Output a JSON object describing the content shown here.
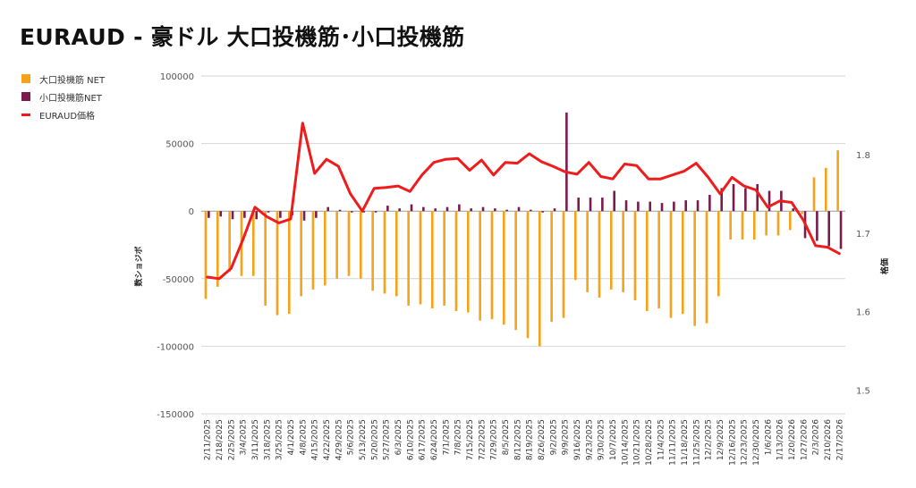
{
  "title": "EURAUD - 豪ドル 大口投機筋･小口投機筋",
  "colors": {
    "large": "#f5a31a",
    "small": "#7b1c4d",
    "price": "#ee1c1c",
    "grid": "#d6d6d6",
    "axis": "#555555"
  },
  "legend": [
    {
      "label": "大口投機筋  NET",
      "color": "#f5a31a",
      "kind": "box"
    },
    {
      "label": "小口投機筋NET",
      "color": "#7b1c4d",
      "kind": "box"
    },
    {
      "label": "EURAUD価格",
      "color": "#ee1c1c",
      "kind": "line"
    }
  ],
  "chart_data": {
    "type": "bar",
    "left_axis_label": "数ショジボ",
    "right_axis_label": "格価",
    "left_ylim": [
      -150000,
      100000
    ],
    "left_ticks": [
      100000,
      50000,
      0,
      -50000,
      -100000,
      -150000
    ],
    "left_tick_labels": [
      "100000",
      "50000",
      "0",
      "-50000",
      "-100000",
      "-150000"
    ],
    "right_ylim": [
      1.47,
      1.9
    ],
    "right_ticks": [
      1.8,
      1.7,
      1.6,
      1.5
    ],
    "right_tick_labels": [
      "1.8",
      "1.7",
      "1.6",
      "1.5"
    ],
    "grid": true,
    "legend_position": "top-left",
    "categories": [
      "2/11/2025",
      "2/18/2025",
      "2/25/2025",
      "3/4/2025",
      "3/11/2025",
      "3/18/2025",
      "3/25/2025",
      "4/1/2025",
      "4/8/2025",
      "4/15/2025",
      "4/22/2025",
      "4/29/2025",
      "5/6/2025",
      "5/13/2025",
      "5/20/2025",
      "5/27/2025",
      "6/3/2025",
      "6/10/2025",
      "6/17/2025",
      "6/24/2025",
      "7/1/2025",
      "7/8/2025",
      "7/15/2025",
      "7/22/2025",
      "7/29/2025",
      "8/5/2025",
      "8/12/2025",
      "8/19/2025",
      "8/26/2025",
      "9/2/2025",
      "9/9/2025",
      "9/16/2025",
      "9/23/2025",
      "9/30/2025",
      "10/7/2025",
      "10/14/2025",
      "10/21/2025",
      "10/28/2025",
      "11/4/2025",
      "11/11/2025",
      "11/18/2025",
      "11/25/2025",
      "12/2/2025",
      "12/9/2025",
      "12/16/2025",
      "12/23/2025",
      "12/30/2025",
      "1/6/2026",
      "1/13/2026",
      "1/20/2026",
      "1/27/2026",
      "2/3/2026",
      "2/10/2026",
      "2/17/2026"
    ],
    "series": [
      {
        "name": "大口投機筋  NET",
        "kind": "bar",
        "values": [
          -65000,
          -56000,
          -45000,
          -48000,
          -48000,
          -70000,
          -77000,
          -76000,
          -63000,
          -58000,
          -55000,
          -50000,
          -48000,
          -50000,
          -59000,
          -61000,
          -63000,
          -70000,
          -69000,
          -72000,
          -70000,
          -74000,
          -75000,
          -81000,
          -80000,
          -84000,
          -88000,
          -94000,
          -100000,
          -82000,
          -79000,
          -51000,
          -60000,
          -64000,
          -58000,
          -60000,
          -66000,
          -74000,
          -72000,
          -79000,
          -76000,
          -85000,
          -83000,
          -63000,
          -21000,
          -21000,
          -21000,
          -18000,
          -18000,
          -14000,
          -2000,
          25000,
          32000,
          45000
        ]
      },
      {
        "name": "小口投機筋NET",
        "kind": "bar",
        "values": [
          -5000,
          -4000,
          -6000,
          -5000,
          -6000,
          -1000,
          -5000,
          -3000,
          -7000,
          -5000,
          3000,
          1000,
          -1000,
          -1000,
          -1000,
          4000,
          2000,
          5000,
          3000,
          2000,
          3000,
          5000,
          2000,
          3000,
          2000,
          1000,
          3000,
          1000,
          -1000,
          2000,
          73000,
          10000,
          10000,
          10000,
          15000,
          8000,
          7000,
          7000,
          6000,
          7000,
          8000,
          8000,
          12000,
          17000,
          20000,
          17000,
          20000,
          15000,
          15000,
          2000,
          -20000,
          -22000,
          -26000,
          -28000
        ]
      },
      {
        "name": "EURAUD価格",
        "kind": "line",
        "values": [
          1.644,
          1.642,
          1.655,
          1.692,
          1.733,
          1.721,
          1.713,
          1.718,
          1.84,
          1.776,
          1.794,
          1.785,
          1.75,
          1.728,
          1.757,
          1.758,
          1.76,
          1.753,
          1.774,
          1.79,
          1.794,
          1.795,
          1.78,
          1.793,
          1.774,
          1.79,
          1.789,
          1.801,
          1.791,
          1.785,
          1.778,
          1.775,
          1.79,
          1.772,
          1.769,
          1.788,
          1.786,
          1.769,
          1.769,
          1.774,
          1.779,
          1.789,
          1.771,
          1.75,
          1.771,
          1.76,
          1.755,
          1.733,
          1.741,
          1.739,
          1.716,
          1.684,
          1.682,
          1.674
        ]
      }
    ]
  }
}
